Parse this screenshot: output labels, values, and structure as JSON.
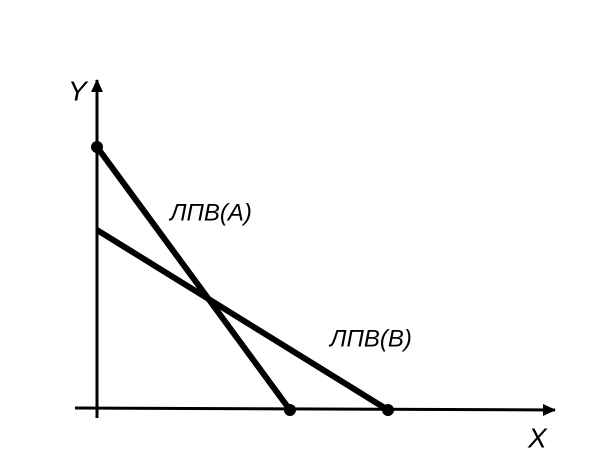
{
  "axes": {
    "y": "Y",
    "x": "X"
  },
  "curves": [
    {
      "label": "ЛПВ(А)"
    },
    {
      "label": "ЛПВ(В)"
    }
  ]
}
